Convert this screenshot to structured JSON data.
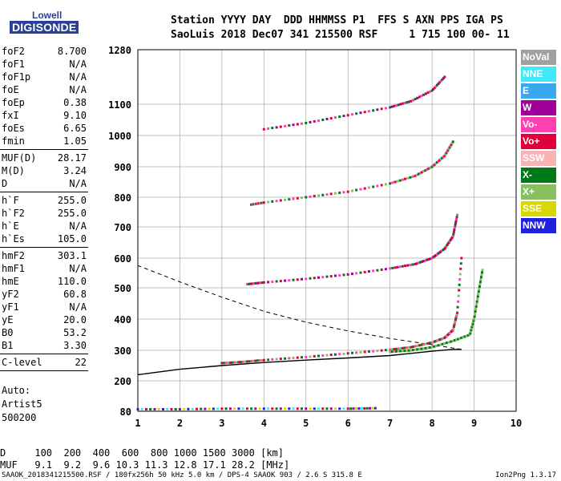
{
  "logo": {
    "line1": "Lowell",
    "line2": "DIGISONDE"
  },
  "header": {
    "line1": "Station YYYY DAY  DDD HHMMSS P1  FFS S AXN PPS IGA PS",
    "line2": "SaoLuis 2018 Dec07 341 215500 RSF     1 715 100 00- 11"
  },
  "params": {
    "group1": [
      {
        "k": "foF2",
        "v": "8.700"
      },
      {
        "k": "foF1",
        "v": "N/A"
      },
      {
        "k": "foF1p",
        "v": "N/A"
      },
      {
        "k": "foE",
        "v": "N/A"
      },
      {
        "k": "foEp",
        "v": "0.38"
      },
      {
        "k": "fxI",
        "v": "9.10"
      },
      {
        "k": "foEs",
        "v": "6.65"
      },
      {
        "k": "fmin",
        "v": "1.05"
      }
    ],
    "group2": [
      {
        "k": "MUF(D)",
        "v": "28.17"
      },
      {
        "k": "M(D)",
        "v": "3.24"
      },
      {
        "k": "D",
        "v": "N/A"
      }
    ],
    "group3": [
      {
        "k": "h`F",
        "v": "255.0"
      },
      {
        "k": "h`F2",
        "v": "255.0"
      },
      {
        "k": "h`E",
        "v": "N/A"
      },
      {
        "k": "h`Es",
        "v": "105.0"
      }
    ],
    "group4": [
      {
        "k": "hmF2",
        "v": "303.1"
      },
      {
        "k": "hmF1",
        "v": "N/A"
      },
      {
        "k": "hmE",
        "v": "110.0"
      },
      {
        "k": "yF2",
        "v": "60.8"
      },
      {
        "k": "yF1",
        "v": "N/A"
      },
      {
        "k": "yE",
        "v": "20.0"
      },
      {
        "k": "B0",
        "v": "53.2"
      },
      {
        "k": "B1",
        "v": "3.30"
      }
    ],
    "clevel": {
      "k": "C-level",
      "v": "22"
    }
  },
  "auto": {
    "line1": "Auto:",
    "line2": "Artist5",
    "line3": "500200"
  },
  "legend": [
    {
      "label": "NoVal",
      "color": "#a0a0a0"
    },
    {
      "label": "NNE",
      "color": "#40e8f8"
    },
    {
      "label": "E",
      "color": "#3aa8f0"
    },
    {
      "label": "W",
      "color": "#a0009a"
    },
    {
      "label": "Vo-",
      "color": "#ff40b0"
    },
    {
      "label": "Vo+",
      "color": "#e0003a"
    },
    {
      "label": "SSW",
      "color": "#f8b4b4"
    },
    {
      "label": "X-",
      "color": "#007a18"
    },
    {
      "label": "X+",
      "color": "#88c060"
    },
    {
      "label": "SSE",
      "color": "#d8d800"
    },
    {
      "label": "NNW",
      "color": "#2020e0"
    }
  ],
  "muf_table": {
    "line1": "D     100  200  400  600  800 1000 1500 3000 [km]",
    "line2": "MUF   9.1  9.2  9.6 10.3 11.3 12.8 17.1 28.2 [MHz]"
  },
  "footer": {
    "left": "SAAOK_2018341215500.RSF / 180fx256h 50 kHz 5.0 km / DPS-4 SAAOK 903 / 2.6 S 315.8 E",
    "right": "Ion2Png 1.3.17"
  },
  "chart_data": {
    "type": "scatter",
    "xlim": [
      1,
      10
    ],
    "ylim": [
      80,
      1280
    ],
    "x_ticks": [
      1,
      2,
      3,
      4,
      5,
      6,
      7,
      8,
      9,
      10
    ],
    "y_ticks": [
      80,
      200,
      300,
      400,
      500,
      600,
      700,
      800,
      900,
      1000,
      1100,
      1280
    ],
    "grid": true,
    "traces": [
      {
        "name": "F2 trace 1st hop",
        "x": [
          3.0,
          3.5,
          4.0,
          5.0,
          6.0,
          7.0,
          7.5,
          8.0,
          8.3,
          8.5,
          8.6,
          8.7
        ],
        "y": [
          258,
          262,
          268,
          278,
          290,
          302,
          310,
          325,
          340,
          365,
          420,
          600
        ]
      },
      {
        "name": "F2 trace 2nd hop",
        "x": [
          3.6,
          4.0,
          5.0,
          6.0,
          7.0,
          7.6,
          8.0,
          8.3,
          8.5,
          8.6
        ],
        "y": [
          512,
          518,
          530,
          545,
          565,
          580,
          600,
          630,
          670,
          740
        ]
      },
      {
        "name": "F2 trace 3rd hop",
        "x": [
          3.7,
          4.0,
          5.0,
          6.0,
          7.0,
          7.6,
          8.0,
          8.3,
          8.5
        ],
        "y": [
          775,
          782,
          800,
          818,
          845,
          870,
          900,
          935,
          980
        ]
      },
      {
        "name": "F2 trace 4th hop",
        "x": [
          4.0,
          5.0,
          6.0,
          7.0,
          7.5,
          8.0,
          8.3
        ],
        "y": [
          1020,
          1040,
          1065,
          1090,
          1110,
          1145,
          1190
        ]
      },
      {
        "name": "X trace",
        "x": [
          7.0,
          7.5,
          8.0,
          8.5,
          8.9,
          9.0,
          9.1,
          9.2
        ],
        "y": [
          295,
          300,
          310,
          330,
          350,
          400,
          480,
          560
        ]
      },
      {
        "name": "Es trace",
        "x": [
          1.0,
          2.0,
          3.0,
          4.0,
          5.0,
          6.0,
          6.65
        ],
        "y": [
          88,
          88,
          90,
          90,
          90,
          90,
          92
        ]
      }
    ],
    "profile": {
      "x": [
        1.0,
        2.0,
        3.0,
        4.0,
        5.0,
        6.0,
        7.0,
        7.5,
        8.0,
        8.5,
        8.7
      ],
      "y": [
        220,
        238,
        250,
        260,
        268,
        275,
        283,
        290,
        297,
        303,
        303
      ]
    },
    "profile_upper": {
      "x": [
        8.7,
        8.0,
        7.0,
        6.0,
        5.0,
        4.0,
        3.0,
        2.0,
        1.0
      ],
      "y": [
        303,
        318,
        338,
        362,
        390,
        425,
        470,
        520,
        575
      ]
    }
  }
}
